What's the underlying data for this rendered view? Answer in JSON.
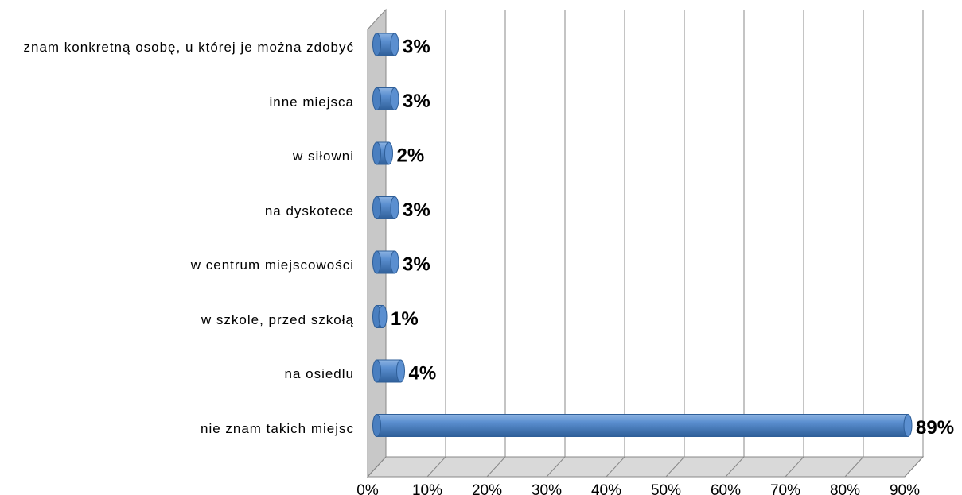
{
  "chart_data": {
    "type": "bar",
    "orientation": "horizontal",
    "categories": [
      "znam konkretną osobę, u której je można zdobyć",
      "inne miejsca",
      "w siłowni",
      "na dyskotece",
      "w centrum miejscowości",
      "w szkole, przed szkołą",
      "na osiedlu",
      "nie znam takich miejsc"
    ],
    "values": [
      3,
      3,
      2,
      3,
      3,
      1,
      4,
      89
    ],
    "value_labels": [
      "3%",
      "3%",
      "2%",
      "3%",
      "3%",
      "1%",
      "4%",
      "89%"
    ],
    "color": "#4f81bd",
    "xlim": [
      0,
      90
    ],
    "xticks": [
      {
        "value": 0,
        "label": "0%"
      },
      {
        "value": 10,
        "label": "10%"
      },
      {
        "value": 20,
        "label": "20%"
      },
      {
        "value": 30,
        "label": "30%"
      },
      {
        "value": 40,
        "label": "40%"
      },
      {
        "value": 50,
        "label": "50%"
      },
      {
        "value": 60,
        "label": "60%"
      },
      {
        "value": 70,
        "label": "70%"
      },
      {
        "value": 80,
        "label": "80%"
      },
      {
        "value": 90,
        "label": "90%"
      }
    ],
    "grid": true
  }
}
